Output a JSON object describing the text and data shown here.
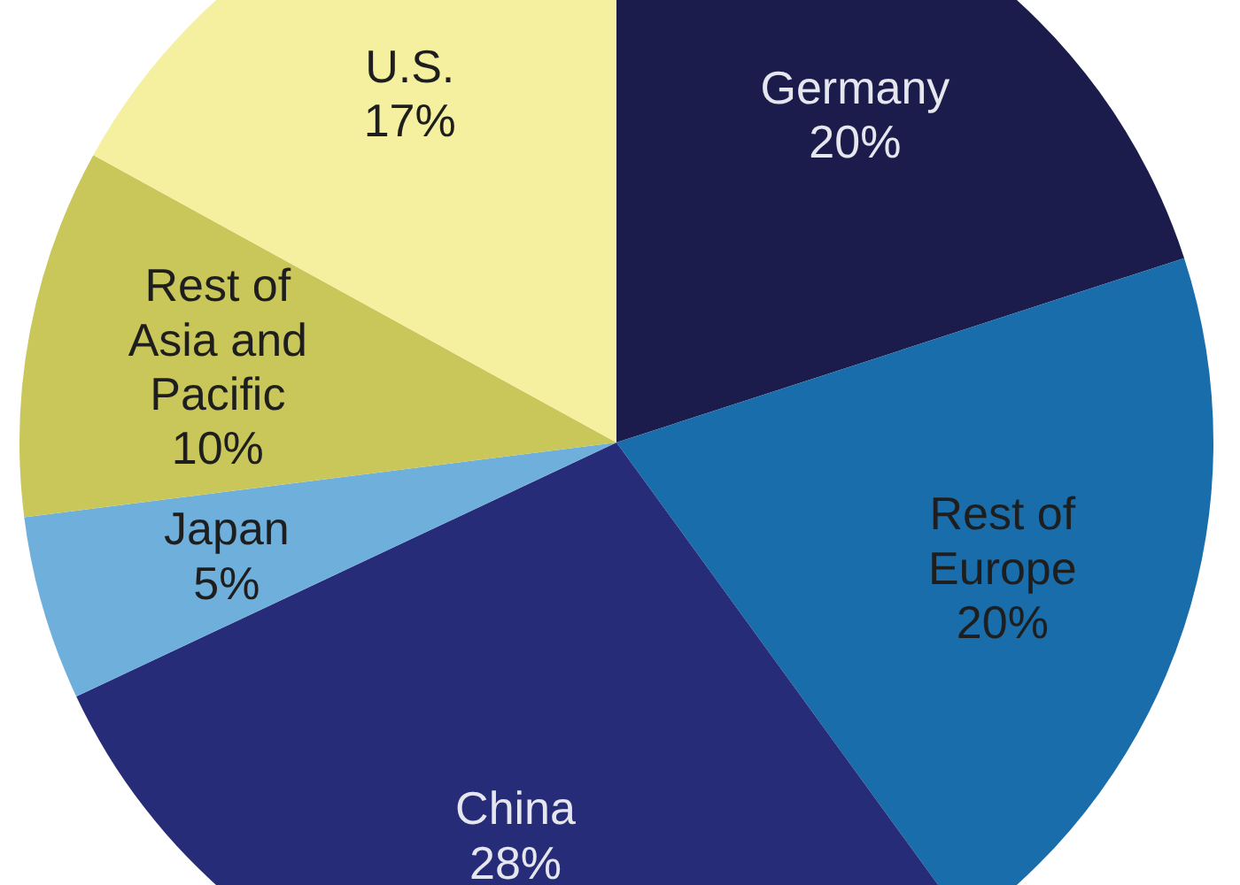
{
  "chart_data": {
    "type": "pie",
    "categories": [
      "Germany",
      "Rest of Europe",
      "China",
      "Japan",
      "Rest of Asia and Pacific",
      "U.S."
    ],
    "values": [
      20,
      20,
      28,
      5,
      10,
      17
    ],
    "value_labels": [
      "20%",
      "20%",
      "28%",
      "5%",
      "10%",
      "17%"
    ],
    "colors": [
      "#1b1c4c",
      "#1a6dab",
      "#272c78",
      "#6fafdc",
      "#c9c65a",
      "#f4f0a0"
    ]
  }
}
